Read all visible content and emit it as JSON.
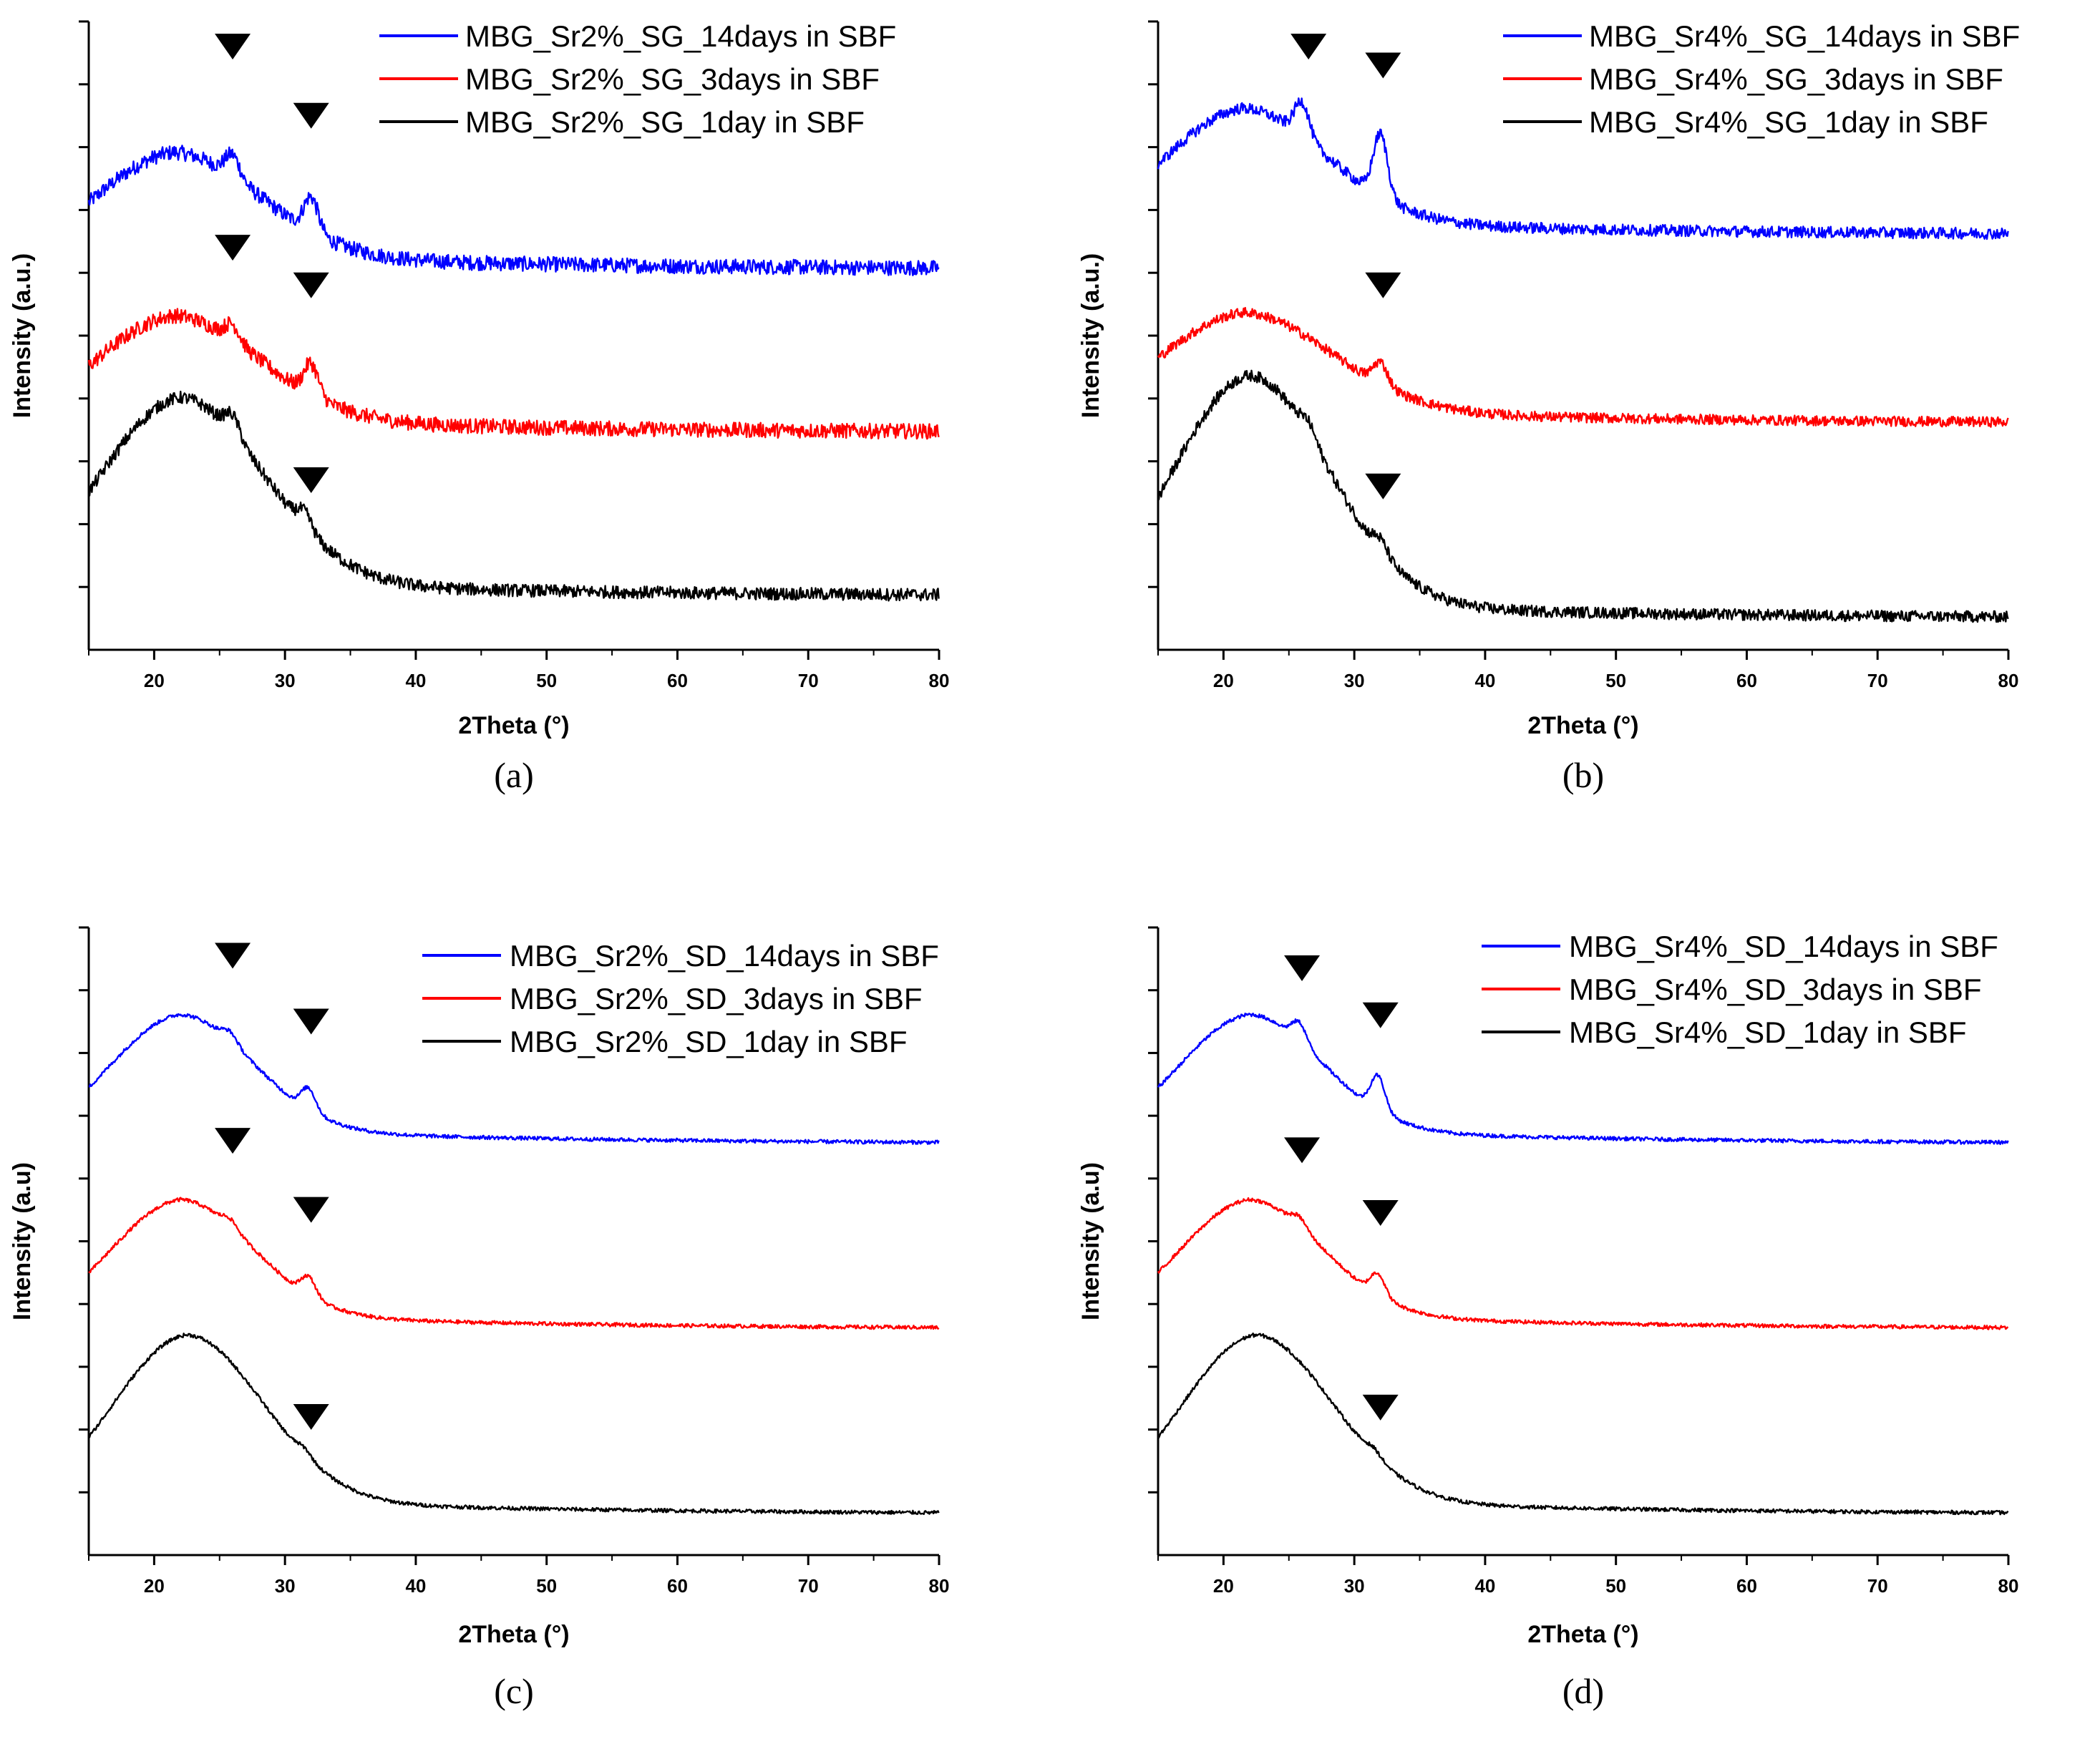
{
  "chart_data": [
    {
      "id": "a",
      "type": "line",
      "panel_label": "(a)",
      "xlabel": "2Theta (°)",
      "ylabel": "Intensity (a.u.)",
      "xlim": [
        15,
        80
      ],
      "ylim": [
        0,
        10
      ],
      "xticks": [
        20,
        30,
        40,
        50,
        60,
        70,
        80
      ],
      "yticks": [
        1,
        2,
        3,
        4,
        5,
        6,
        7,
        8,
        9
      ],
      "legend_position": "top-right",
      "series": [
        {
          "name": "MBG_Sr2%_SG_14days in SBF",
          "color": "#0000ff",
          "offset": 5.8,
          "base": 0.25,
          "amp": 1.6,
          "hump_center": 21.5,
          "hump_width": 6.5,
          "peaks": [
            {
              "x": 26,
              "h": 0.35
            },
            {
              "x": 32,
              "h": 0.55
            }
          ],
          "noise": 0.12
        },
        {
          "name": "MBG_Sr2%_SG_3days in SBF",
          "color": "#ff0000",
          "offset": 3.2,
          "base": 0.25,
          "amp": 1.6,
          "hump_center": 21.5,
          "hump_width": 6.5,
          "peaks": [
            {
              "x": 26,
              "h": 0.25
            },
            {
              "x": 32,
              "h": 0.5
            }
          ],
          "noise": 0.12
        },
        {
          "name": "MBG_Sr2%_SG_1day in SBF",
          "color": "#000000",
          "offset": 0.55,
          "base": 0.3,
          "amp": 2.9,
          "hump_center": 22,
          "hump_width": 6.3,
          "peaks": [
            {
              "x": 26,
              "h": 0.3
            },
            {
              "x": 31.5,
              "h": 0.25
            }
          ],
          "noise": 0.1
        }
      ],
      "markers": [
        {
          "x": 26,
          "y": 9.6
        },
        {
          "x": 32,
          "y": 8.5
        },
        {
          "x": 26,
          "y": 6.4
        },
        {
          "x": 32,
          "y": 5.8
        },
        {
          "x": 32,
          "y": 2.7
        }
      ]
    },
    {
      "id": "b",
      "type": "line",
      "panel_label": "(b)",
      "xlabel": "2Theta (°)",
      "ylabel": "Intensity (a.u.)",
      "xlim": [
        15,
        80
      ],
      "ylim": [
        0,
        10
      ],
      "xticks": [
        20,
        30,
        40,
        50,
        60,
        70,
        80
      ],
      "yticks": [
        1,
        2,
        3,
        4,
        5,
        6,
        7,
        8,
        9
      ],
      "legend_position": "top-right",
      "series": [
        {
          "name": "MBG_Sr4%_SG_14days in SBF",
          "color": "#0000ff",
          "offset": 6.35,
          "base": 0.25,
          "amp": 1.75,
          "hump_center": 21.5,
          "hump_width": 6.3,
          "peaks": [
            {
              "x": 26,
              "h": 0.55
            },
            {
              "x": 32,
              "h": 1.0
            }
          ],
          "noise": 0.09
        },
        {
          "name": "MBG_Sr4%_SG_3days in SBF",
          "color": "#ff0000",
          "offset": 3.35,
          "base": 0.25,
          "amp": 1.5,
          "hump_center": 21.5,
          "hump_width": 6.8,
          "peaks": [
            {
              "x": 32,
              "h": 0.35
            }
          ],
          "noise": 0.08
        },
        {
          "name": "MBG_Sr4%_SG_1day in SBF",
          "color": "#000000",
          "offset": 0.3,
          "base": 0.2,
          "amp": 3.6,
          "hump_center": 22,
          "hump_width": 6.0,
          "peaks": [
            {
              "x": 26.5,
              "h": 0.2
            },
            {
              "x": 32,
              "h": 0.2
            }
          ],
          "noise": 0.09
        }
      ],
      "markers": [
        {
          "x": 26.5,
          "y": 9.6
        },
        {
          "x": 32.2,
          "y": 9.3
        },
        {
          "x": 32.2,
          "y": 5.8
        },
        {
          "x": 32.2,
          "y": 2.6
        }
      ]
    },
    {
      "id": "c",
      "type": "line",
      "panel_label": "(c)",
      "xlabel": "2Theta (°)",
      "ylabel": "Intensity (a.u)",
      "xlim": [
        15,
        80
      ],
      "ylim": [
        0,
        10
      ],
      "xticks": [
        20,
        30,
        40,
        50,
        60,
        70,
        80
      ],
      "yticks": [
        1,
        2,
        3,
        4,
        5,
        6,
        7,
        8,
        9
      ],
      "legend_position": "top-right",
      "series": [
        {
          "name": "MBG_Sr2%_SD_14days in SBF",
          "color": "#0000ff",
          "offset": 6.35,
          "base": 0.2,
          "amp": 1.8,
          "hump_center": 22,
          "hump_width": 5.5,
          "peaks": [
            {
              "x": 25.8,
              "h": 0.15
            },
            {
              "x": 31.8,
              "h": 0.35
            }
          ],
          "noise": 0.03
        },
        {
          "name": "MBG_Sr2%_SD_3days in SBF",
          "color": "#ff0000",
          "offset": 3.4,
          "base": 0.2,
          "amp": 1.8,
          "hump_center": 22,
          "hump_width": 5.5,
          "peaks": [
            {
              "x": 25.8,
              "h": 0.12
            },
            {
              "x": 31.8,
              "h": 0.3
            }
          ],
          "noise": 0.03
        },
        {
          "name": "MBG_Sr2%_SD_1day in SBF",
          "color": "#000000",
          "offset": 0.45,
          "base": 0.2,
          "amp": 2.6,
          "hump_center": 22.5,
          "hump_width": 5.8,
          "peaks": [
            {
              "x": 31.5,
              "h": 0.1
            }
          ],
          "noise": 0.03
        }
      ],
      "markers": [
        {
          "x": 26,
          "y": 9.55
        },
        {
          "x": 32,
          "y": 8.5
        },
        {
          "x": 26,
          "y": 6.6
        },
        {
          "x": 32,
          "y": 5.5
        },
        {
          "x": 32,
          "y": 2.2
        }
      ]
    },
    {
      "id": "d",
      "type": "line",
      "panel_label": "(d)",
      "xlabel": "2Theta (°)",
      "ylabel": "Intensity (a.u)",
      "xlim": [
        15,
        80
      ],
      "ylim": [
        0,
        10
      ],
      "xticks": [
        20,
        30,
        40,
        50,
        60,
        70,
        80
      ],
      "yticks": [
        1,
        2,
        3,
        4,
        5,
        6,
        7,
        8,
        9
      ],
      "legend_position": "top-right",
      "series": [
        {
          "name": "MBG_Sr4%_SD_14days in SBF",
          "color": "#0000ff",
          "offset": 6.35,
          "base": 0.2,
          "amp": 1.8,
          "hump_center": 22,
          "hump_width": 5.5,
          "peaks": [
            {
              "x": 25.8,
              "h": 0.3
            },
            {
              "x": 31.8,
              "h": 0.55
            }
          ],
          "noise": 0.03
        },
        {
          "name": "MBG_Sr4%_SD_3days in SBF",
          "color": "#ff0000",
          "offset": 3.4,
          "base": 0.2,
          "amp": 1.8,
          "hump_center": 22,
          "hump_width": 5.5,
          "peaks": [
            {
              "x": 25.8,
              "h": 0.15
            },
            {
              "x": 31.8,
              "h": 0.35
            }
          ],
          "noise": 0.03
        },
        {
          "name": "MBG_Sr4%_SD_1day in SBF",
          "color": "#000000",
          "offset": 0.45,
          "base": 0.2,
          "amp": 2.6,
          "hump_center": 22.5,
          "hump_width": 5.8,
          "peaks": [
            {
              "x": 31.5,
              "h": 0.1
            }
          ],
          "noise": 0.03
        }
      ],
      "markers": [
        {
          "x": 26,
          "y": 9.35
        },
        {
          "x": 32,
          "y": 8.6
        },
        {
          "x": 26,
          "y": 6.45
        },
        {
          "x": 32,
          "y": 5.45
        },
        {
          "x": 32,
          "y": 2.35
        }
      ]
    }
  ]
}
